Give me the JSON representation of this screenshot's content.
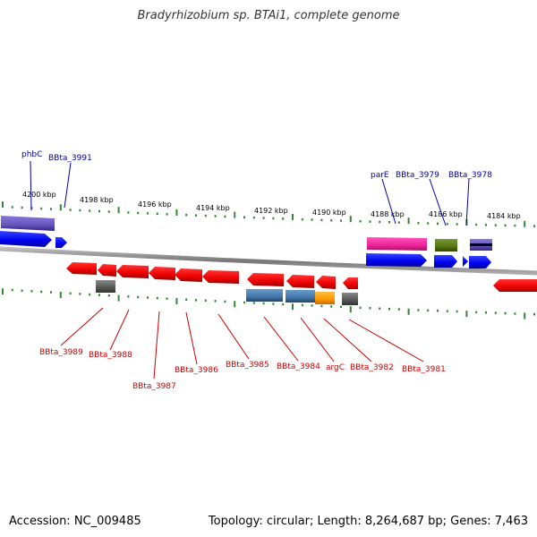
{
  "title": "Bradyrhizobium sp. BTAi1, complete genome",
  "footer": {
    "accession": "Accession: NC_009485",
    "topology": "Topology: circular; Length: 8,264,687 bp; Genes: 7,463"
  },
  "scale": {
    "ticks": [
      "4200 kbp",
      "4198 kbp",
      "4196 kbp",
      "4194 kbp",
      "4192 kbp",
      "4190 kbp",
      "4188 kbp",
      "4186 kbp",
      "4184 kbp"
    ]
  },
  "labels_top": [
    "phbC",
    "BBta_3991",
    "parE",
    "BBta_3979",
    "BBta_3978"
  ],
  "labels_bottom": [
    "BBta_3989",
    "BBta_3988",
    "BBta_3987",
    "BBta_3986",
    "BBta_3985",
    "BBta_3984",
    "argC",
    "BBta_3982",
    "BBta_3981"
  ],
  "colors": {
    "blue_label": "#0000aa",
    "red_label": "#cc0000",
    "gene_blue": "#0000ee",
    "gene_red": "#ee0000",
    "gene_purple": "#6655bb",
    "gene_pink": "#ee2299",
    "gene_olive": "#557711",
    "gene_steel": "#4477aa",
    "gene_orange": "#ff9900",
    "gene_gray": "#555555",
    "tick_green": "#338833",
    "backbone": "#888888"
  }
}
